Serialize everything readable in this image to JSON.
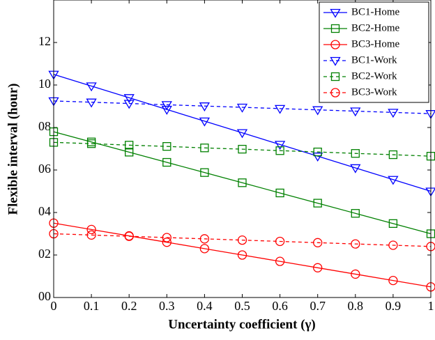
{
  "chart_data": {
    "type": "line",
    "xlabel": "Uncertainty coefficient (γ)",
    "ylabel": "Flexible interval (hour)",
    "x": [
      0,
      0.1,
      0.2,
      0.3,
      0.4,
      0.5,
      0.6,
      0.7,
      0.8,
      0.9,
      1
    ],
    "xlim": [
      0,
      1
    ],
    "xticks": [
      0,
      0.1,
      0.2,
      0.3,
      0.4,
      0.5,
      0.6,
      0.7,
      0.8,
      0.9,
      1
    ],
    "ylim": [
      0,
      14
    ],
    "yticks": [
      {
        "value": 0,
        "label": "00"
      },
      {
        "value": 2,
        "label": "02"
      },
      {
        "value": 4,
        "label": "04"
      },
      {
        "value": 6,
        "label": "06"
      },
      {
        "value": 8,
        "label": "08"
      },
      10,
      12
    ],
    "legend": "upper-right",
    "series": [
      {
        "name": "BC1-Home",
        "color": "#0000ff",
        "marker": "triangle-down",
        "style": "solid",
        "values": [
          10.5,
          9.95,
          9.4,
          8.85,
          8.3,
          7.75,
          7.2,
          6.65,
          6.1,
          5.55,
          5.0
        ]
      },
      {
        "name": "BC2-Home",
        "color": "#008000",
        "marker": "square",
        "style": "solid",
        "values": [
          7.8,
          7.32,
          6.84,
          6.36,
          5.88,
          5.4,
          4.92,
          4.44,
          3.96,
          3.48,
          3.0
        ]
      },
      {
        "name": "BC3-Home",
        "color": "#ff0000",
        "marker": "circle",
        "style": "solid",
        "values": [
          3.5,
          3.2,
          2.9,
          2.6,
          2.3,
          2.0,
          1.7,
          1.4,
          1.1,
          0.8,
          0.5
        ]
      },
      {
        "name": "BC1-Work",
        "color": "#0000ff",
        "marker": "triangle-down",
        "style": "dashed",
        "values": [
          9.25,
          9.19,
          9.13,
          9.07,
          9.01,
          8.95,
          8.89,
          8.83,
          8.77,
          8.71,
          8.65
        ]
      },
      {
        "name": "BC2-Work",
        "color": "#008000",
        "marker": "square",
        "style": "dashed",
        "values": [
          7.3,
          7.24,
          7.17,
          7.11,
          7.04,
          6.98,
          6.91,
          6.85,
          6.78,
          6.72,
          6.65
        ]
      },
      {
        "name": "BC3-Work",
        "color": "#ff0000",
        "marker": "circle",
        "style": "dashed",
        "values": [
          3.0,
          2.94,
          2.88,
          2.82,
          2.76,
          2.7,
          2.64,
          2.58,
          2.52,
          2.46,
          2.4
        ]
      }
    ]
  }
}
